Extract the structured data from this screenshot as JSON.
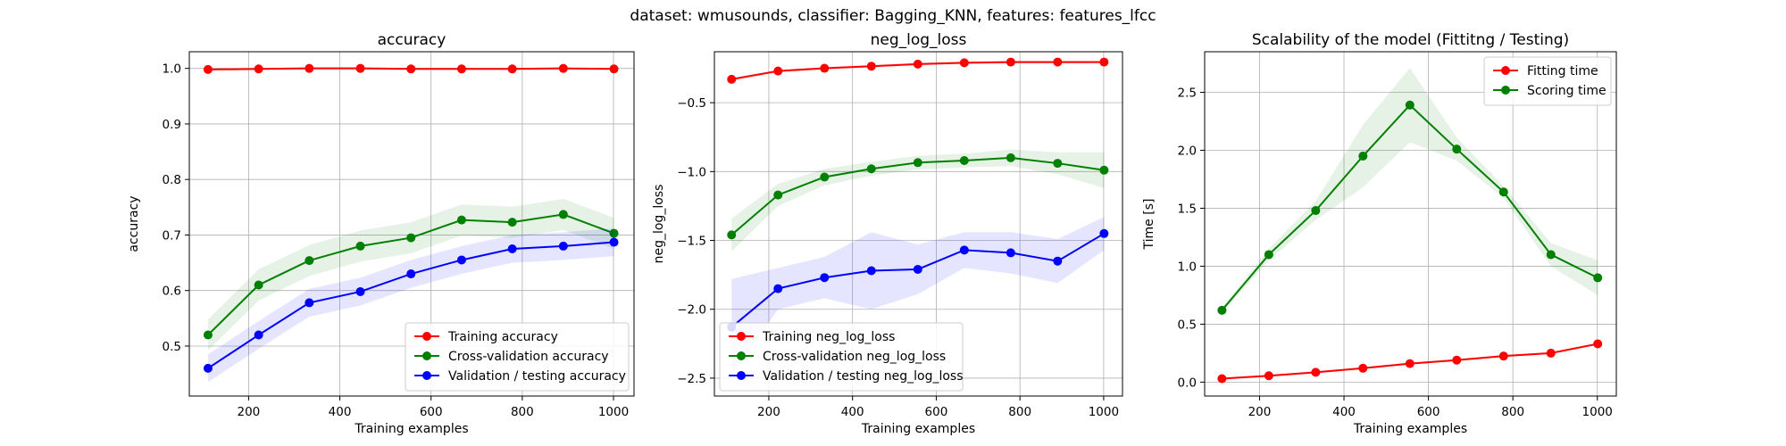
{
  "figure": {
    "suptitle": "dataset: wmusounds, classifier: Bagging_KNN, features: features_lfcc"
  },
  "chart_data": [
    {
      "type": "line",
      "title": "accuracy",
      "xlabel": "Training examples",
      "ylabel": "accuracy",
      "xlim": [
        70,
        1045
      ],
      "ylim": [
        0.41,
        1.03
      ],
      "xticks": [
        200,
        400,
        600,
        800,
        1000
      ],
      "yticks": [
        0.5,
        0.6,
        0.7,
        0.8,
        0.9,
        1.0
      ],
      "ytick_labels": [
        "0.5",
        "0.6",
        "0.7",
        "0.8",
        "0.9",
        "1.0"
      ],
      "grid": true,
      "legend_position": "lower-right",
      "x": [
        111,
        222,
        333,
        445,
        556,
        667,
        778,
        890,
        1001
      ],
      "series": [
        {
          "name": "Training accuracy",
          "color": "#ff0000",
          "values": [
            0.998,
            0.999,
            1.0,
            1.0,
            0.999,
            0.999,
            0.999,
            1.0,
            0.999
          ],
          "band": 0.002
        },
        {
          "name": "Cross-validation accuracy",
          "color": "#008000",
          "values": [
            0.52,
            0.61,
            0.654,
            0.68,
            0.695,
            0.727,
            0.723,
            0.737,
            0.703
          ],
          "band": 0.028
        },
        {
          "name": "Validation / testing accuracy",
          "color": "#0000ff",
          "values": [
            0.46,
            0.52,
            0.578,
            0.598,
            0.63,
            0.655,
            0.675,
            0.68,
            0.687
          ],
          "band": 0.025
        }
      ]
    },
    {
      "type": "line",
      "title": "neg_log_loss",
      "xlabel": "Training examples",
      "ylabel": "neg_log_loss",
      "xlim": [
        70,
        1045
      ],
      "ylim": [
        -2.63,
        -0.13
      ],
      "xticks": [
        200,
        400,
        600,
        800,
        1000
      ],
      "yticks": [
        -2.5,
        -2.0,
        -1.5,
        -1.0,
        -0.5
      ],
      "ytick_labels": [
        "−2.5",
        "−2.0",
        "−1.5",
        "−1.0",
        "−0.5"
      ],
      "grid": true,
      "legend_position": "lower-left",
      "x": [
        111,
        222,
        333,
        445,
        556,
        667,
        778,
        890,
        1001
      ],
      "series": [
        {
          "name": "Training neg_log_loss",
          "color": "#ff0000",
          "values": [
            -0.33,
            -0.27,
            -0.25,
            -0.235,
            -0.22,
            -0.21,
            -0.205,
            -0.205,
            -0.205
          ],
          "band": 0.01
        },
        {
          "name": "Cross-validation neg_log_loss",
          "color": "#008000",
          "values": [
            -1.46,
            -1.17,
            -1.04,
            -0.98,
            -0.935,
            -0.92,
            -0.9,
            -0.94,
            -0.99
          ],
          "bandArr": [
            0.12,
            0.08,
            0.06,
            0.05,
            0.05,
            0.05,
            0.06,
            0.08,
            0.13
          ]
        },
        {
          "name": "Validation / testing neg_log_loss",
          "color": "#0000ff",
          "values": [
            -2.13,
            -1.85,
            -1.77,
            -1.72,
            -1.71,
            -1.57,
            -1.59,
            -1.65,
            -1.45
          ],
          "bandArr": [
            0.35,
            0.15,
            0.15,
            0.28,
            0.18,
            0.13,
            0.15,
            0.16,
            0.12
          ]
        }
      ]
    },
    {
      "type": "line",
      "title": "Scalability of the model (Fittitng / Testing)",
      "xlabel": "Training examples",
      "ylabel": "Time [s]",
      "xlim": [
        70,
        1045
      ],
      "ylim": [
        -0.12,
        2.85
      ],
      "xticks": [
        200,
        400,
        600,
        800,
        1000
      ],
      "yticks": [
        0.0,
        0.5,
        1.0,
        1.5,
        2.0,
        2.5
      ],
      "ytick_labels": [
        "0.0",
        "0.5",
        "1.0",
        "1.5",
        "2.0",
        "2.5"
      ],
      "grid": true,
      "legend_position": "upper-right",
      "x": [
        111,
        222,
        333,
        445,
        556,
        667,
        778,
        890,
        1001
      ],
      "series": [
        {
          "name": "Fitting time",
          "color": "#ff0000",
          "values": [
            0.03,
            0.055,
            0.085,
            0.12,
            0.16,
            0.19,
            0.225,
            0.25,
            0.33
          ],
          "band": 0.01
        },
        {
          "name": "Scoring time",
          "color": "#008000",
          "values": [
            0.62,
            1.1,
            1.48,
            1.95,
            2.39,
            2.01,
            1.64,
            1.1,
            0.9
          ],
          "bandArr": [
            0.02,
            0.05,
            0.08,
            0.27,
            0.32,
            0.1,
            0.05,
            0.1,
            0.15
          ]
        }
      ]
    }
  ]
}
